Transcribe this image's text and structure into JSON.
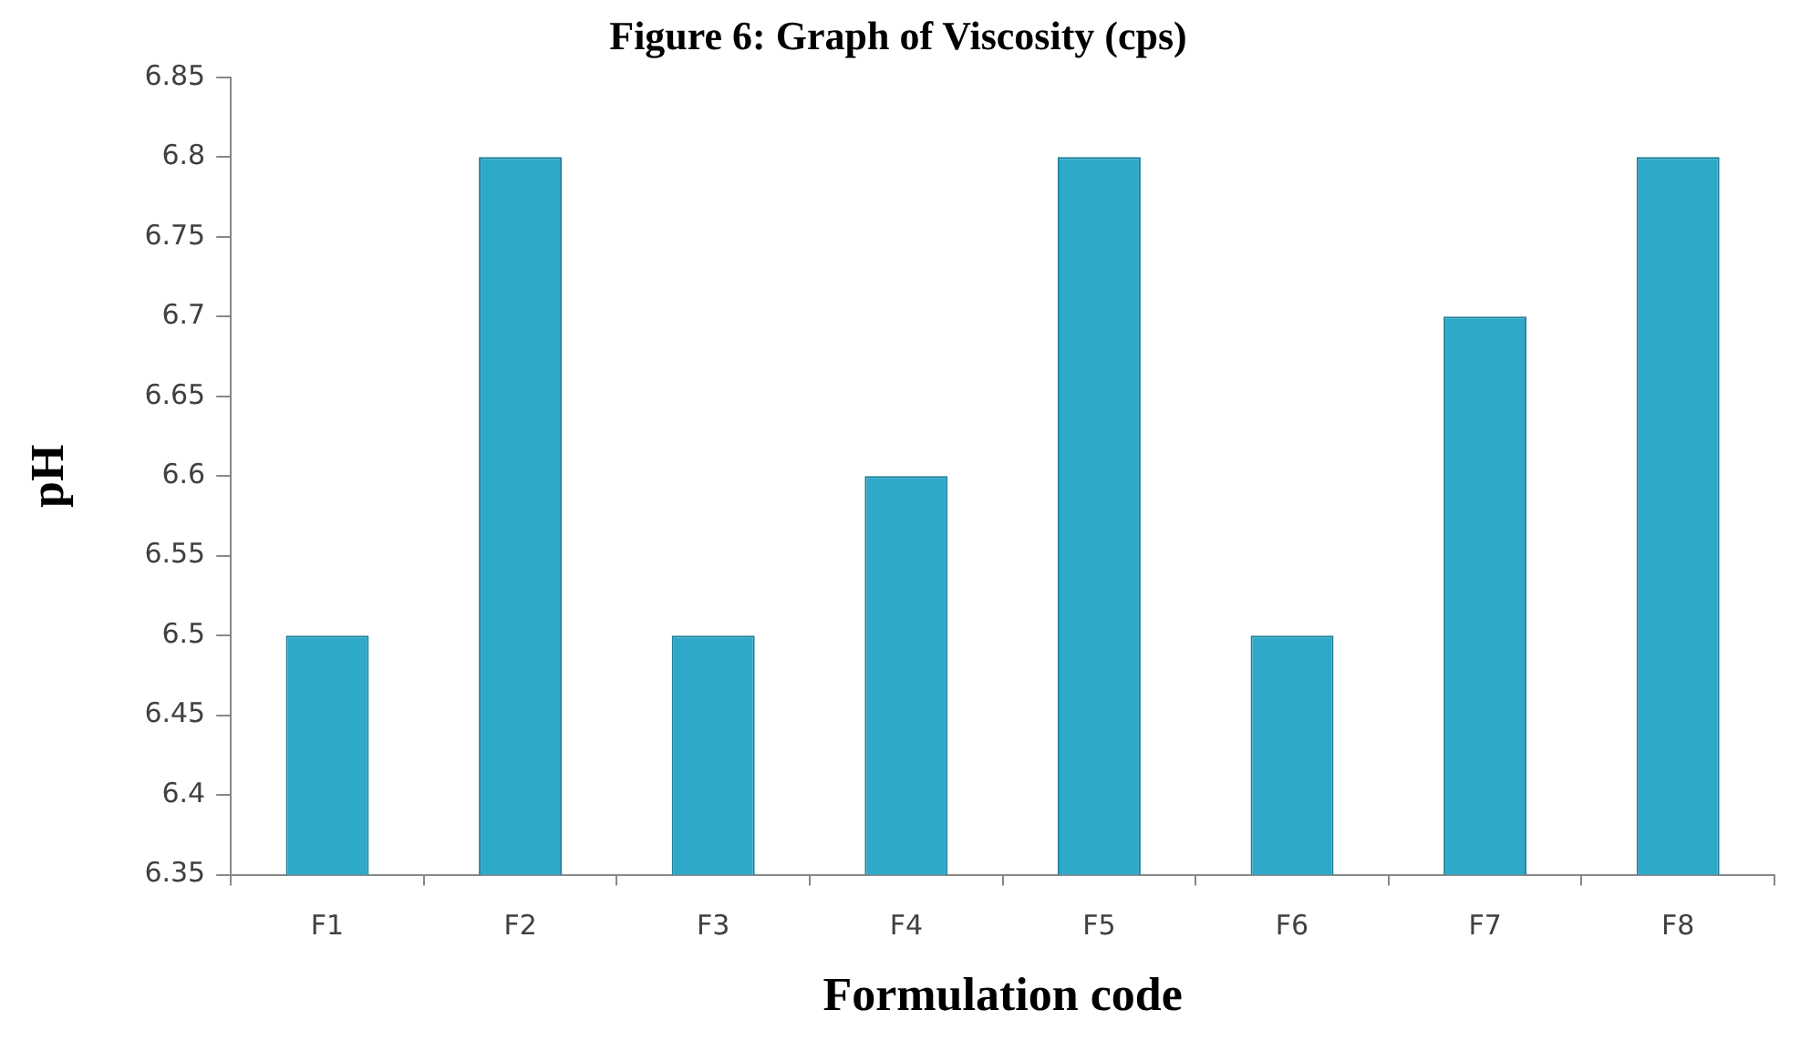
{
  "chart_data": {
    "type": "bar",
    "title": "Figure 6: Graph of Viscosity (cps)",
    "xlabel": "Formulation code",
    "ylabel": "pH",
    "categories": [
      "F1",
      "F2",
      "F3",
      "F4",
      "F5",
      "F6",
      "F7",
      "F8"
    ],
    "values": [
      6.5,
      6.8,
      6.5,
      6.6,
      6.8,
      6.5,
      6.7,
      6.8
    ],
    "color": "#2fa9c9",
    "ylim": [
      6.35,
      6.85
    ],
    "yticks": [
      6.35,
      6.4,
      6.45,
      6.5,
      6.55,
      6.6,
      6.65,
      6.7,
      6.75,
      6.8,
      6.85
    ],
    "grid": false,
    "legend": false
  }
}
